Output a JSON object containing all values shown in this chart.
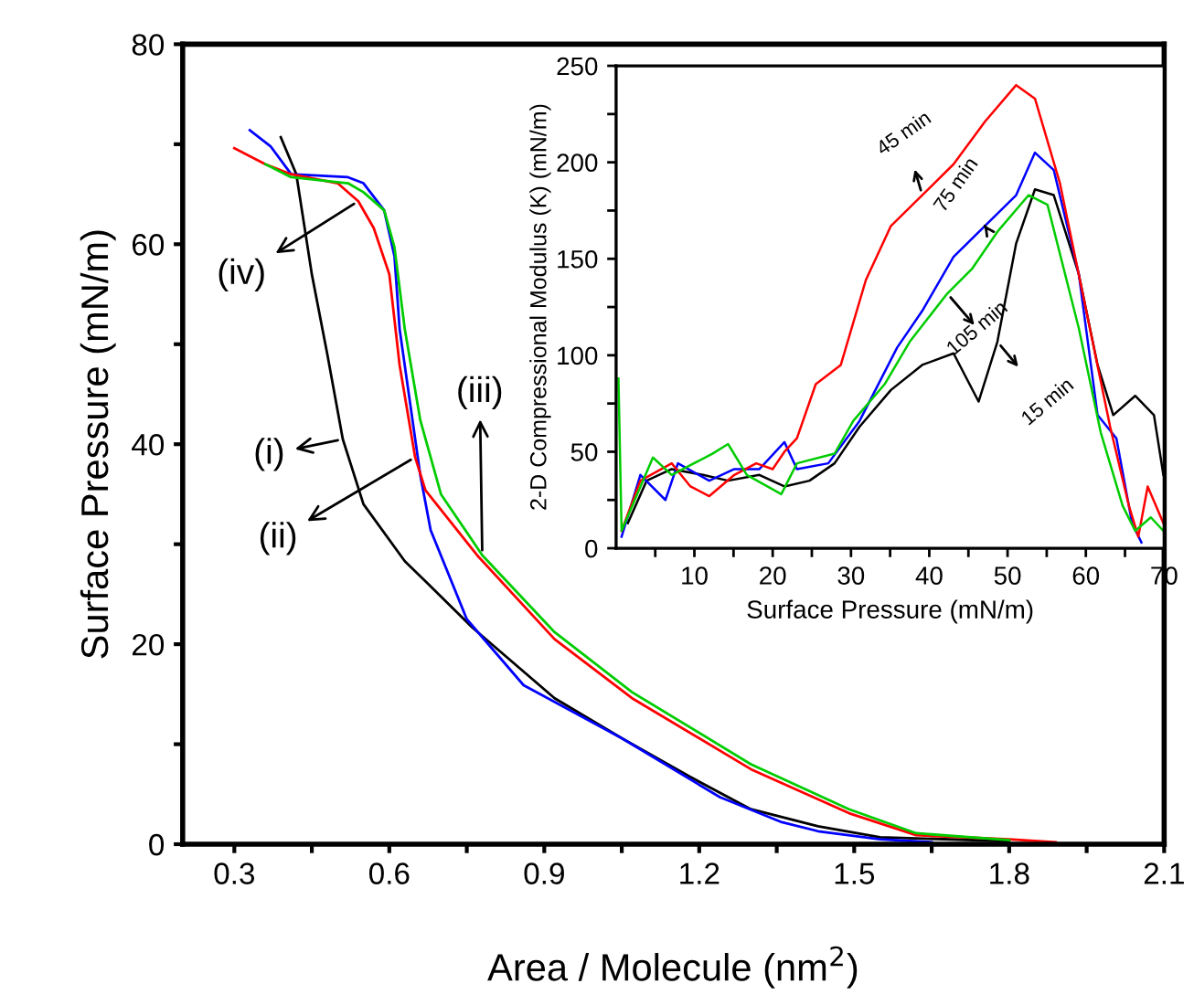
{
  "chart_data": [
    {
      "type": "line",
      "xlabel": "Area / Molecule (nm$^{2}$)",
      "ylabel": "Surface Pressure (mN/m)",
      "xlim": [
        0.2,
        2.1
      ],
      "ylim": [
        0,
        80
      ],
      "xticks": [
        0.3,
        {
          "value": 0.45,
          "label": null
        },
        0.6,
        {
          "value": 0.75,
          "label": null
        },
        0.9,
        {
          "value": 1.05,
          "label": null
        },
        1.2,
        {
          "value": 1.35,
          "label": null
        },
        1.5,
        {
          "value": 1.65,
          "label": null
        },
        1.8,
        {
          "value": 1.95,
          "label": null
        },
        2.1
      ],
      "yticks": [
        0,
        {
          "value": 10,
          "label": null
        },
        20,
        {
          "value": 30,
          "label": null
        },
        40,
        {
          "value": 50,
          "label": null
        },
        60,
        {
          "value": 70,
          "label": null
        },
        80
      ],
      "grid": false,
      "marker": "none",
      "line_style": "solid",
      "series": [
        {
          "color": "#000000",
          "x": [
            0.39,
            0.42,
            0.45,
            0.48,
            0.51,
            0.55,
            0.63,
            0.67,
            0.76,
            0.92,
            1.05,
            1.18,
            1.3,
            1.43,
            1.55,
            1.8
          ],
          "values": [
            70.7,
            67,
            57,
            49,
            40.5,
            34,
            28.3,
            26.3,
            21.7,
            14.6,
            10.6,
            6.8,
            3.5,
            1.8,
            0.7,
            0.3
          ]
        },
        {
          "color": "#0000ff",
          "x": [
            0.33,
            0.37,
            0.41,
            0.52,
            0.55,
            0.59,
            0.61,
            0.62,
            0.64,
            0.66,
            0.68,
            0.75,
            0.86,
            1.05,
            1.24,
            1.36,
            1.43,
            1.55,
            1.65
          ],
          "values": [
            71.4,
            69.8,
            67,
            66.7,
            66.1,
            63.4,
            58.8,
            51.5,
            44.2,
            36.9,
            31.4,
            22.5,
            15.9,
            10.6,
            4.7,
            2.2,
            1.3,
            0.5,
            0.2
          ]
        },
        {
          "color": "#ff0000",
          "x": [
            0.3,
            0.36,
            0.41,
            0.5,
            0.54,
            0.57,
            0.6,
            0.62,
            0.65,
            0.67,
            0.77,
            0.92,
            1.07,
            1.3,
            1.49,
            1.62,
            1.8,
            1.89
          ],
          "values": [
            69.6,
            68,
            67,
            66.1,
            64.3,
            61.6,
            57,
            47.9,
            38.7,
            35.4,
            28.9,
            20.5,
            14.6,
            7.5,
            3.1,
            0.9,
            0.5,
            0.2
          ]
        },
        {
          "color": "#00cc00",
          "x": [
            0.36,
            0.41,
            0.52,
            0.55,
            0.59,
            0.61,
            0.63,
            0.66,
            0.7,
            0.78,
            0.92,
            1.07,
            1.3,
            1.49,
            1.62,
            1.8
          ],
          "values": [
            68,
            66.7,
            66.1,
            65.2,
            63.4,
            59.7,
            51.5,
            42.4,
            35,
            28.9,
            21.2,
            15.2,
            8,
            3.5,
            1.1,
            0.4
          ]
        }
      ],
      "annotations": [
        {
          "text": "(iv)",
          "x": 0.54,
          "y": 64.3
        },
        {
          "text": "(i)",
          "x": 0.51,
          "y": 40.5
        },
        {
          "text": "(ii)",
          "x": 0.65,
          "y": 38.7
        },
        {
          "text": "(iii)",
          "x": 0.78,
          "y": 28.9
        }
      ]
    },
    {
      "type": "line",
      "xlabel": "Surface Pressure (mN/m)",
      "ylabel": "2-D Compressional Modulus (K) (mN/m)",
      "xlim": [
        0,
        70
      ],
      "ylim": [
        0,
        250
      ],
      "xticks": [
        {
          "value": 5,
          "label": null
        },
        10,
        {
          "value": 15,
          "label": null
        },
        20,
        {
          "value": 25,
          "label": null
        },
        30,
        {
          "value": 35,
          "label": null
        },
        40,
        {
          "value": 45,
          "label": null
        },
        50,
        {
          "value": 55,
          "label": null
        },
        60,
        {
          "value": 65,
          "label": null
        },
        70
      ],
      "yticks": [
        0,
        {
          "value": 25,
          "label": null
        },
        50,
        {
          "value": 75,
          "label": null
        },
        100,
        {
          "value": 125,
          "label": null
        },
        150,
        {
          "value": 175,
          "label": null
        },
        200,
        {
          "value": 225,
          "label": null
        },
        250
      ],
      "grid": false,
      "marker": "none",
      "line_style": "solid",
      "series": [
        {
          "color": "#000000",
          "x": [
            1.5,
            3.9,
            7.1,
            11.1,
            14.3,
            18.3,
            21.5,
            24.7,
            27.9,
            31.1,
            35.1,
            39.1,
            43.1,
            46.3,
            48.7,
            51.1,
            53.5,
            55.9,
            59.1,
            61.5,
            63.5,
            66.3,
            68.7,
            69.9
          ],
          "values": [
            13,
            35,
            41,
            38,
            35,
            38,
            32,
            35,
            44,
            63,
            82,
            95,
            101,
            76,
            107,
            158,
            186,
            183,
            142,
            95,
            69,
            79,
            69,
            38
          ]
        },
        {
          "color": "#0000ff",
          "x": [
            0.7,
            3.1,
            6.3,
            7.9,
            11.9,
            15.1,
            18.3,
            21.5,
            23.1,
            27.1,
            31.1,
            35.9,
            39.1,
            43.1,
            47.1,
            51.1,
            53.5,
            55.9,
            59.1,
            61.5,
            63.9,
            65.9,
            67.1
          ],
          "values": [
            6,
            38,
            25,
            44,
            35,
            41,
            41,
            55,
            41,
            44,
            66,
            104,
            123,
            151,
            167,
            183,
            205,
            196,
            142,
            69,
            57,
            13,
            3
          ]
        },
        {
          "color": "#ff0000",
          "x": [
            0.7,
            3.1,
            7.1,
            9.5,
            11.9,
            15.1,
            17.9,
            20.0,
            21.5,
            23.1,
            25.5,
            28.7,
            31.9,
            35.1,
            39.1,
            43.1,
            47.1,
            51.1,
            53.5,
            56.7,
            59.9,
            63.1,
            65.5,
            66.7,
            67.9,
            69.9
          ],
          "values": [
            9,
            35,
            44,
            32,
            27,
            38,
            44,
            41,
            50,
            57,
            85,
            95,
            139,
            167,
            183,
            199,
            221,
            240,
            233,
            189,
            126,
            63,
            22,
            6,
            32,
            13
          ]
        },
        {
          "color": "#00cc00",
          "x": [
            0.3,
            0.7,
            4.7,
            7.1,
            12.3,
            14.3,
            16.7,
            21.1,
            23.1,
            27.9,
            30.3,
            34.3,
            37.5,
            42.3,
            45.5,
            48.7,
            52.7,
            55.1,
            59.1,
            61.9,
            64.7,
            66.3,
            68.3,
            69.9
          ],
          "values": [
            88,
            9,
            47,
            38,
            49,
            54,
            38,
            28,
            44,
            49,
            66,
            85,
            107,
            132,
            145,
            164,
            183,
            178,
            114,
            60,
            22,
            9,
            16,
            9
          ]
        }
      ],
      "annotations": [
        {
          "text": "45 min",
          "x": 39.1,
          "y": 183
        },
        {
          "text": "75 min",
          "x": 47.1,
          "y": 167
        },
        {
          "text": "105 min",
          "x": 42.3,
          "y": 132
        },
        {
          "text": "15 min",
          "x": 48.7,
          "y": 107
        }
      ]
    }
  ]
}
